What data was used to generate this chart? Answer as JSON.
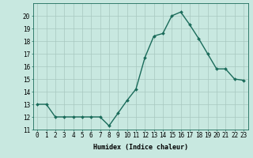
{
  "x": [
    0,
    1,
    2,
    3,
    4,
    5,
    6,
    7,
    8,
    9,
    10,
    11,
    12,
    13,
    14,
    15,
    16,
    17,
    18,
    19,
    20,
    21,
    22,
    23
  ],
  "y": [
    13,
    13,
    12,
    12,
    12,
    12,
    12,
    12,
    11.3,
    12.3,
    13.3,
    14.2,
    16.7,
    18.4,
    18.6,
    20.0,
    20.3,
    19.3,
    18.2,
    17.0,
    15.8,
    15.8,
    15.0,
    14.9
  ],
  "line_color": "#1a6b5a",
  "marker_color": "#1a6b5a",
  "bg_color": "#c8e8e0",
  "grid_color": "#a8c8c0",
  "xlabel": "Humidex (Indice chaleur)",
  "ylim": [
    11,
    21
  ],
  "xlim": [
    -0.5,
    23.5
  ],
  "yticks": [
    11,
    12,
    13,
    14,
    15,
    16,
    17,
    18,
    19,
    20
  ],
  "xticks": [
    0,
    1,
    2,
    3,
    4,
    5,
    6,
    7,
    8,
    9,
    10,
    11,
    12,
    13,
    14,
    15,
    16,
    17,
    18,
    19,
    20,
    21,
    22,
    23
  ],
  "xlabel_fontsize": 6.0,
  "tick_fontsize": 5.5,
  "linewidth": 1.0,
  "markersize": 2.0
}
